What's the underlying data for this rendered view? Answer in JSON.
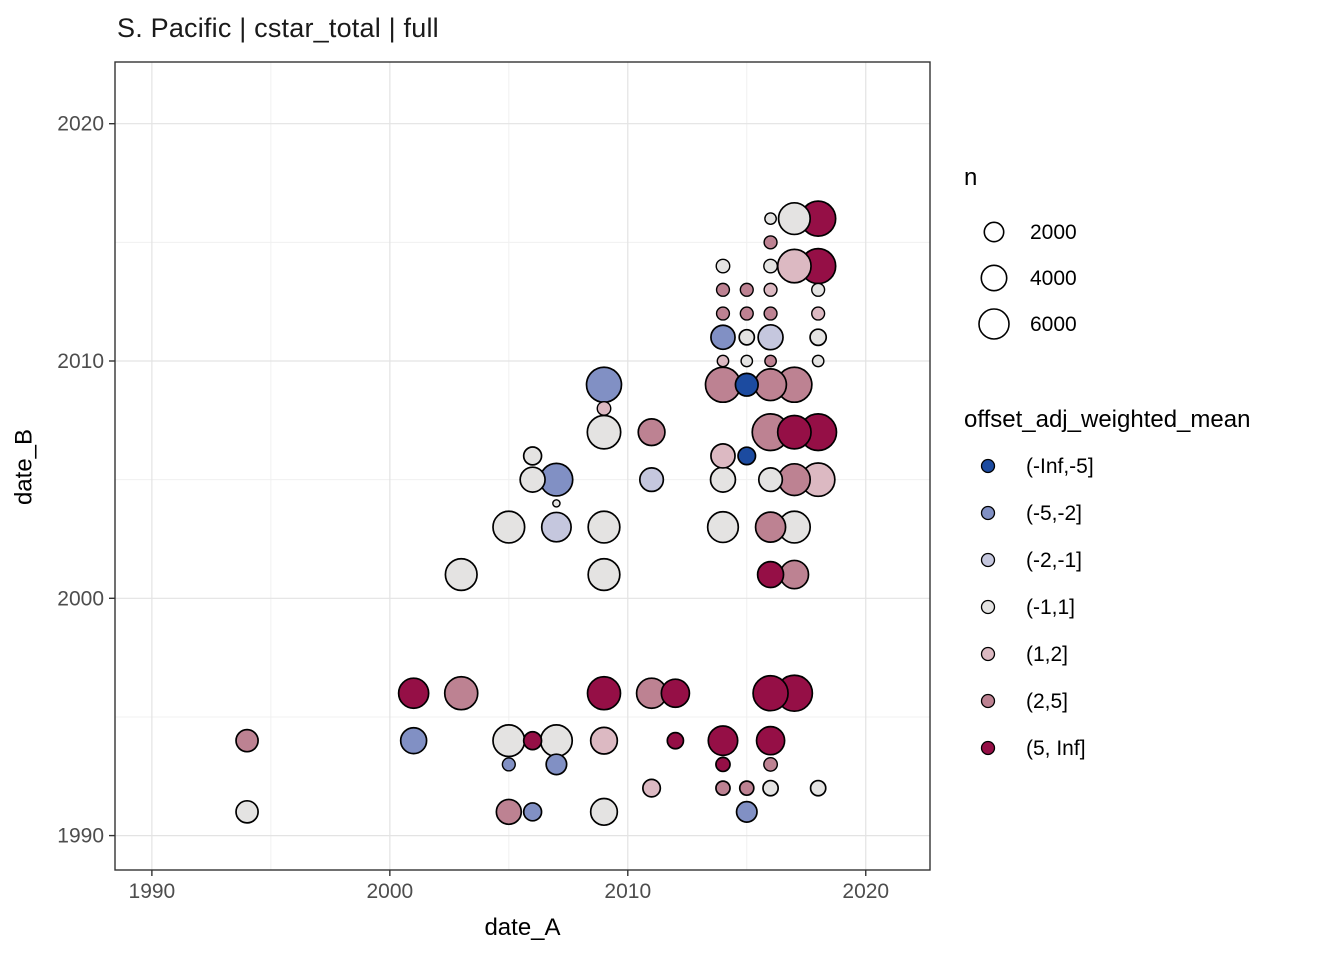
{
  "chart_data": {
    "type": "scatter",
    "title": "S. Pacific | cstar_total | full",
    "xlabel": "date_A",
    "ylabel": "date_B",
    "x_ticks": [
      1990,
      2000,
      2010,
      2020
    ],
    "y_ticks": [
      1990,
      2000,
      2010,
      2020
    ],
    "x_minor": [
      1995,
      2005,
      2015
    ],
    "y_minor": [
      1995,
      2005,
      2015
    ],
    "x_domain": [
      1988.45,
      2022.7
    ],
    "y_domain": [
      1988.55,
      2022.6
    ],
    "grid": true,
    "legend_position": "right",
    "size_legend": {
      "title": "n",
      "values": [
        2000,
        4000,
        6000
      ]
    },
    "color_legend": {
      "title": "offset_adj_weighted_mean",
      "bins": [
        {
          "label": "(-Inf,-5]",
          "color": "#1c4ba0"
        },
        {
          "label": "(-5,-2]",
          "color": "#8190c4"
        },
        {
          "label": "(-2,-1]",
          "color": "#c5c7de"
        },
        {
          "label": "(-1,1]",
          "color": "#e4e3e2"
        },
        {
          "label": "(1,2]",
          "color": "#dcb9c2"
        },
        {
          "label": "(2,5]",
          "color": "#bd8292"
        },
        {
          "label": "(5, Inf]",
          "color": "#950f46"
        }
      ]
    },
    "points": [
      {
        "x": 1994,
        "y": 1991,
        "bin": 3,
        "n": 2800
      },
      {
        "x": 2005,
        "y": 1991,
        "bin": 5,
        "n": 3800
      },
      {
        "x": 2006,
        "y": 1991,
        "bin": 1,
        "n": 1600
      },
      {
        "x": 2009,
        "y": 1991,
        "bin": 3,
        "n": 4500
      },
      {
        "x": 2015,
        "y": 1991,
        "bin": 1,
        "n": 2300
      },
      {
        "x": 2011,
        "y": 1992,
        "bin": 4,
        "n": 1500
      },
      {
        "x": 2014,
        "y": 1992,
        "bin": 5,
        "n": 800
      },
      {
        "x": 2015,
        "y": 1992,
        "bin": 5,
        "n": 800
      },
      {
        "x": 2016,
        "y": 1992,
        "bin": 3,
        "n": 1000
      },
      {
        "x": 2018,
        "y": 1992,
        "bin": 3,
        "n": 1000
      },
      {
        "x": 2005,
        "y": 1993,
        "bin": 1,
        "n": 600
      },
      {
        "x": 2007,
        "y": 1993,
        "bin": 1,
        "n": 2300
      },
      {
        "x": 2014,
        "y": 1993,
        "bin": 6,
        "n": 800
      },
      {
        "x": 2016,
        "y": 1993,
        "bin": 5,
        "n": 700
      },
      {
        "x": 1994,
        "y": 1994,
        "bin": 5,
        "n": 2800
      },
      {
        "x": 2001,
        "y": 1994,
        "bin": 1,
        "n": 4200
      },
      {
        "x": 2005,
        "y": 1994,
        "bin": 3,
        "n": 6800
      },
      {
        "x": 2006,
        "y": 1994,
        "bin": 6,
        "n": 1600
      },
      {
        "x": 2007,
        "y": 1994,
        "bin": 3,
        "n": 6800
      },
      {
        "x": 2009,
        "y": 1994,
        "bin": 4,
        "n": 4500
      },
      {
        "x": 2012,
        "y": 1994,
        "bin": 6,
        "n": 1200
      },
      {
        "x": 2014,
        "y": 1994,
        "bin": 6,
        "n": 5700
      },
      {
        "x": 2016,
        "y": 1994,
        "bin": 6,
        "n": 5100
      },
      {
        "x": 2001,
        "y": 1996,
        "bin": 6,
        "n": 6000
      },
      {
        "x": 2003,
        "y": 1996,
        "bin": 5,
        "n": 7500
      },
      {
        "x": 2009,
        "y": 1996,
        "bin": 6,
        "n": 7500
      },
      {
        "x": 2011,
        "y": 1996,
        "bin": 5,
        "n": 6000
      },
      {
        "x": 2012,
        "y": 1996,
        "bin": 6,
        "n": 5100
      },
      {
        "x": 2016,
        "y": 1996,
        "bin": 6,
        "n": 8600
      },
      {
        "x": 2017,
        "y": 1996,
        "bin": 6,
        "n": 9200
      },
      {
        "x": 2003,
        "y": 2001,
        "bin": 3,
        "n": 6800
      },
      {
        "x": 2009,
        "y": 2001,
        "bin": 3,
        "n": 6800
      },
      {
        "x": 2016,
        "y": 2001,
        "bin": 6,
        "n": 4200
      },
      {
        "x": 2017,
        "y": 2001,
        "bin": 5,
        "n": 5200
      },
      {
        "x": 2005,
        "y": 2003,
        "bin": 3,
        "n": 6800
      },
      {
        "x": 2007,
        "y": 2003,
        "bin": 2,
        "n": 5700
      },
      {
        "x": 2009,
        "y": 2003,
        "bin": 3,
        "n": 6800
      },
      {
        "x": 2014,
        "y": 2003,
        "bin": 3,
        "n": 6300
      },
      {
        "x": 2016,
        "y": 2003,
        "bin": 5,
        "n": 6000
      },
      {
        "x": 2017,
        "y": 2003,
        "bin": 3,
        "n": 6800
      },
      {
        "x": 2007,
        "y": 2004,
        "bin": 3,
        "n": 50
      },
      {
        "x": 2006,
        "y": 2005,
        "bin": 3,
        "n": 3800
      },
      {
        "x": 2007,
        "y": 2005,
        "bin": 1,
        "n": 7300
      },
      {
        "x": 2011,
        "y": 2005,
        "bin": 2,
        "n": 3300
      },
      {
        "x": 2014,
        "y": 2005,
        "bin": 3,
        "n": 3800
      },
      {
        "x": 2016,
        "y": 2005,
        "bin": 3,
        "n": 3300
      },
      {
        "x": 2017,
        "y": 2005,
        "bin": 5,
        "n": 6800
      },
      {
        "x": 2018,
        "y": 2005,
        "bin": 4,
        "n": 7700
      },
      {
        "x": 2006,
        "y": 2006,
        "bin": 3,
        "n": 1600
      },
      {
        "x": 2014,
        "y": 2006,
        "bin": 4,
        "n": 3500
      },
      {
        "x": 2015,
        "y": 2006,
        "bin": 0,
        "n": 1500
      },
      {
        "x": 2009,
        "y": 2007,
        "bin": 3,
        "n": 7700
      },
      {
        "x": 2011,
        "y": 2007,
        "bin": 5,
        "n": 4500
      },
      {
        "x": 2016,
        "y": 2007,
        "bin": 5,
        "n": 9600
      },
      {
        "x": 2017,
        "y": 2007,
        "bin": 6,
        "n": 7700
      },
      {
        "x": 2018,
        "y": 2007,
        "bin": 6,
        "n": 9600
      },
      {
        "x": 2009,
        "y": 2008,
        "bin": 4,
        "n": 700
      },
      {
        "x": 2009,
        "y": 2009,
        "bin": 1,
        "n": 8600
      },
      {
        "x": 2014,
        "y": 2009,
        "bin": 5,
        "n": 8600
      },
      {
        "x": 2015,
        "y": 2009,
        "bin": 0,
        "n": 3000
      },
      {
        "x": 2016,
        "y": 2009,
        "bin": 5,
        "n": 6800
      },
      {
        "x": 2017,
        "y": 2009,
        "bin": 5,
        "n": 8600
      },
      {
        "x": 2014,
        "y": 2010,
        "bin": 4,
        "n": 400
      },
      {
        "x": 2015,
        "y": 2010,
        "bin": 3,
        "n": 400
      },
      {
        "x": 2016,
        "y": 2010,
        "bin": 5,
        "n": 400
      },
      {
        "x": 2018,
        "y": 2010,
        "bin": 3,
        "n": 400
      },
      {
        "x": 2014,
        "y": 2011,
        "bin": 1,
        "n": 3500
      },
      {
        "x": 2015,
        "y": 2011,
        "bin": 3,
        "n": 1000
      },
      {
        "x": 2016,
        "y": 2011,
        "bin": 2,
        "n": 3800
      },
      {
        "x": 2018,
        "y": 2011,
        "bin": 3,
        "n": 1200
      },
      {
        "x": 2014,
        "y": 2012,
        "bin": 5,
        "n": 600
      },
      {
        "x": 2015,
        "y": 2012,
        "bin": 5,
        "n": 600
      },
      {
        "x": 2016,
        "y": 2012,
        "bin": 5,
        "n": 600
      },
      {
        "x": 2018,
        "y": 2012,
        "bin": 4,
        "n": 600
      },
      {
        "x": 2014,
        "y": 2013,
        "bin": 5,
        "n": 600
      },
      {
        "x": 2015,
        "y": 2013,
        "bin": 5,
        "n": 600
      },
      {
        "x": 2016,
        "y": 2013,
        "bin": 4,
        "n": 600
      },
      {
        "x": 2018,
        "y": 2013,
        "bin": 3,
        "n": 600
      },
      {
        "x": 2014,
        "y": 2014,
        "bin": 3,
        "n": 700
      },
      {
        "x": 2016,
        "y": 2014,
        "bin": 3,
        "n": 700
      },
      {
        "x": 2017,
        "y": 2014,
        "bin": 4,
        "n": 7700
      },
      {
        "x": 2018,
        "y": 2014,
        "bin": 6,
        "n": 8600
      },
      {
        "x": 2016,
        "y": 2015,
        "bin": 5,
        "n": 600
      },
      {
        "x": 2016,
        "y": 2016,
        "bin": 3,
        "n": 400
      },
      {
        "x": 2017,
        "y": 2016,
        "bin": 3,
        "n": 6800
      },
      {
        "x": 2018,
        "y": 2016,
        "bin": 6,
        "n": 8600
      }
    ]
  }
}
